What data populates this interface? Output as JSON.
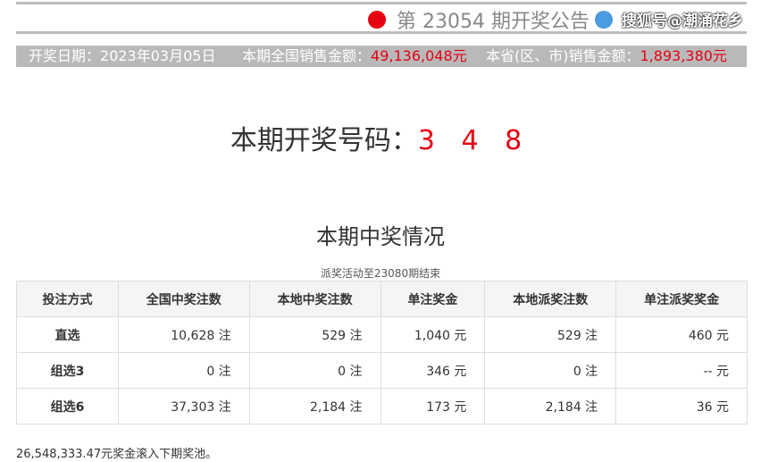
{
  "header": {
    "title": "第 23054 期开奖公告",
    "watermark": "搜狐号@潮涌花乡"
  },
  "info": {
    "date_label": "开奖日期：",
    "date": "2023年03月05日",
    "national_label": "本期全国销售金额：",
    "national_value": "49,136,048元",
    "province_label": "本省(区、市)销售金额：",
    "province_value": "1,893,380元"
  },
  "draw": {
    "label": "本期开奖号码：",
    "numbers": "3 4 8"
  },
  "prize": {
    "title": "本期中奖情况",
    "note": "派奖活动至23080期结束",
    "headers": [
      "投注方式",
      "全国中奖注数",
      "本地中奖注数",
      "单注奖金",
      "本地派奖注数",
      "单注派奖奖金"
    ],
    "rows": [
      [
        "直选",
        "10,628 注",
        "529 注",
        "1,040 元",
        "529 注",
        "460 元"
      ],
      [
        "组选3",
        "0 注",
        "0 注",
        "346 元",
        "0 注",
        "-- 元"
      ],
      [
        "组选6",
        "37,303 注",
        "2,184 注",
        "173 元",
        "2,184 注",
        "36 元"
      ]
    ]
  },
  "footer": "26,548,333.47元奖金滚入下期奖池。",
  "colors": {
    "accent": "#e60012",
    "bar": "#b9b9b9"
  }
}
